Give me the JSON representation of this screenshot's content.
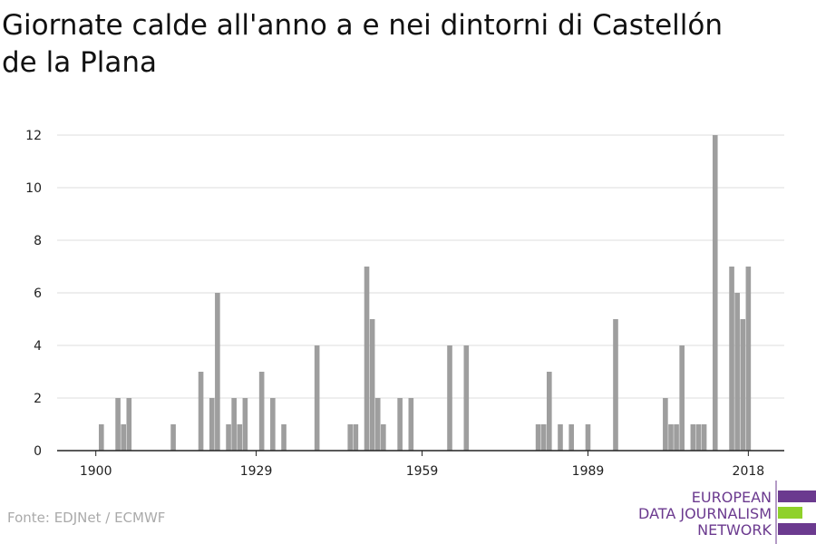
{
  "chart_data": {
    "type": "bar",
    "title_lines": [
      "Giornate calde all'anno a e nei dintorni di Castellón",
      "de la Plana"
    ],
    "x": [
      1901,
      1904,
      1905,
      1906,
      1914,
      1919,
      1921,
      1922,
      1924,
      1925,
      1926,
      1927,
      1930,
      1932,
      1934,
      1940,
      1946,
      1947,
      1949,
      1950,
      1951,
      1952,
      1955,
      1957,
      1964,
      1967,
      1980,
      1981,
      1982,
      1984,
      1986,
      1989,
      1994,
      2003,
      2004,
      2005,
      2006,
      2008,
      2009,
      2010,
      2012,
      2015,
      2016,
      2017,
      2018
    ],
    "values": [
      1,
      2,
      1,
      2,
      1,
      3,
      2,
      6,
      1,
      2,
      1,
      2,
      3,
      2,
      1,
      4,
      1,
      1,
      7,
      5,
      2,
      1,
      2,
      2,
      4,
      4,
      1,
      1,
      3,
      1,
      1,
      1,
      5,
      2,
      1,
      1,
      4,
      1,
      1,
      1,
      12,
      7,
      6,
      5,
      7
    ],
    "color": "#9e9e9e",
    "xlim": [
      1893,
      2024.5
    ],
    "xticks": [
      1900,
      1929,
      1959,
      1989,
      2018
    ],
    "ylim": [
      0,
      12
    ],
    "yticks": [
      0,
      2,
      4,
      6,
      8,
      10,
      12
    ],
    "grid": true,
    "source": "Fonte: EDJNet / ECMWF",
    "logo": [
      "EUROPEAN",
      "DATA JOURNALISM",
      "NETWORK"
    ]
  }
}
